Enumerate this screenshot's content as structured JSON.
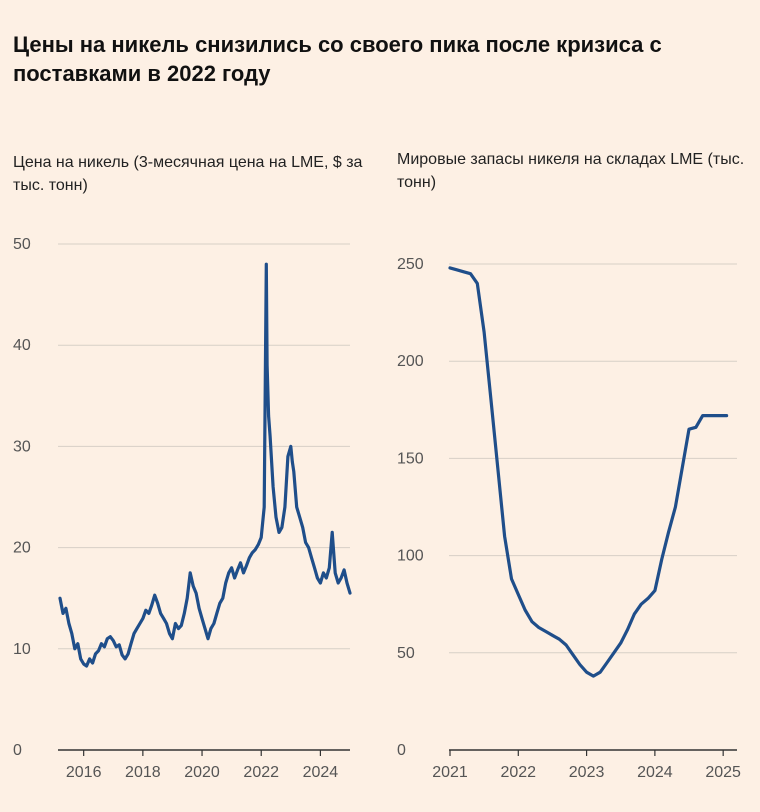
{
  "title": "Цены на никель снизились со своего пика после кризиса с поставками в 2022 году",
  "chart_data": [
    {
      "type": "line",
      "title": "Цена на никель (3-месячная цена на LME, $ за тыс. тонн)",
      "ylim": [
        0,
        50
      ],
      "yticks": [
        0,
        10,
        20,
        30,
        40,
        50
      ],
      "xlim": [
        2015.2,
        2025.0
      ],
      "xticks": [
        "2016",
        "2018",
        "2020",
        "2022",
        "2024"
      ],
      "grid": true,
      "series": [
        {
          "x": [
            2015.2,
            2015.3,
            2015.4,
            2015.5,
            2015.6,
            2015.7,
            2015.8,
            2015.9,
            2016.0,
            2016.1,
            2016.2,
            2016.3,
            2016.4,
            2016.5,
            2016.6,
            2016.7,
            2016.8,
            2016.9,
            2017.0,
            2017.1,
            2017.2,
            2017.3,
            2017.4,
            2017.5,
            2017.6,
            2017.7,
            2017.8,
            2017.9,
            2018.0,
            2018.1,
            2018.2,
            2018.3,
            2018.4,
            2018.5,
            2018.6,
            2018.7,
            2018.8,
            2018.9,
            2019.0,
            2019.1,
            2019.2,
            2019.3,
            2019.4,
            2019.5,
            2019.6,
            2019.7,
            2019.8,
            2019.9,
            2020.0,
            2020.1,
            2020.2,
            2020.3,
            2020.4,
            2020.5,
            2020.6,
            2020.7,
            2020.8,
            2020.9,
            2021.0,
            2021.1,
            2021.2,
            2021.3,
            2021.4,
            2021.5,
            2021.6,
            2021.7,
            2021.8,
            2021.9,
            2022.0,
            2022.1,
            2022.17,
            2022.2,
            2022.25,
            2022.3,
            2022.4,
            2022.5,
            2022.6,
            2022.7,
            2022.8,
            2022.9,
            2023.0,
            2023.05,
            2023.1,
            2023.2,
            2023.3,
            2023.4,
            2023.5,
            2023.6,
            2023.7,
            2023.8,
            2023.9,
            2024.0,
            2024.1,
            2024.2,
            2024.3,
            2024.4,
            2024.5,
            2024.6,
            2024.7,
            2024.8,
            2024.9,
            2025.0
          ],
          "values": [
            15.0,
            13.5,
            14.0,
            12.5,
            11.5,
            10.0,
            10.5,
            9.0,
            8.5,
            8.3,
            9.0,
            8.6,
            9.5,
            9.8,
            10.5,
            10.2,
            11.0,
            11.2,
            10.8,
            10.2,
            10.4,
            9.4,
            9.0,
            9.5,
            10.5,
            11.5,
            12.0,
            12.5,
            13.0,
            13.8,
            13.5,
            14.3,
            15.3,
            14.5,
            13.5,
            13.0,
            12.5,
            11.5,
            11.0,
            12.5,
            12.0,
            12.3,
            13.5,
            15.0,
            17.5,
            16.2,
            15.5,
            14.0,
            13.0,
            12.0,
            11.0,
            12.0,
            12.5,
            13.5,
            14.5,
            15.0,
            16.5,
            17.5,
            18.0,
            17.0,
            17.8,
            18.5,
            17.5,
            18.2,
            19.0,
            19.5,
            19.8,
            20.3,
            21.0,
            24.0,
            48.0,
            38.0,
            33.0,
            31.0,
            26.0,
            23.0,
            21.5,
            22.0,
            24.0,
            29.0,
            30.0,
            28.5,
            27.5,
            24.0,
            23.0,
            22.0,
            20.5,
            20.0,
            19.0,
            18.0,
            17.0,
            16.5,
            17.5,
            17.0,
            18.0,
            21.5,
            17.5,
            16.5,
            17.0,
            17.8,
            16.5,
            15.5
          ]
        }
      ]
    },
    {
      "type": "line",
      "title": "Мировые запасы никеля на складах LME (тыс. тонн)",
      "ylim": [
        0,
        250
      ],
      "yticks": [
        0,
        50,
        100,
        150,
        200,
        250
      ],
      "xlim": [
        2021.0,
        2025.1
      ],
      "xticks": [
        "2021",
        "2022",
        "2023",
        "2024",
        "2025"
      ],
      "grid": true,
      "series": [
        {
          "x": [
            2021.0,
            2021.1,
            2021.2,
            2021.3,
            2021.4,
            2021.5,
            2021.6,
            2021.7,
            2021.8,
            2021.9,
            2022.0,
            2022.1,
            2022.2,
            2022.3,
            2022.4,
            2022.5,
            2022.6,
            2022.7,
            2022.8,
            2022.9,
            2023.0,
            2023.1,
            2023.2,
            2023.3,
            2023.4,
            2023.5,
            2023.6,
            2023.7,
            2023.8,
            2023.9,
            2024.0,
            2024.1,
            2024.2,
            2024.3,
            2024.4,
            2024.5,
            2024.6,
            2024.7,
            2024.8,
            2024.9,
            2025.0,
            2025.05
          ],
          "values": [
            248,
            247,
            246,
            245,
            240,
            215,
            180,
            145,
            110,
            88,
            80,
            72,
            66,
            63,
            61,
            59,
            57,
            54,
            49,
            44,
            40,
            38,
            40,
            45,
            50,
            55,
            62,
            70,
            75,
            78,
            82,
            98,
            112,
            125,
            145,
            165,
            166,
            172,
            172,
            172,
            172,
            172
          ]
        }
      ]
    }
  ]
}
